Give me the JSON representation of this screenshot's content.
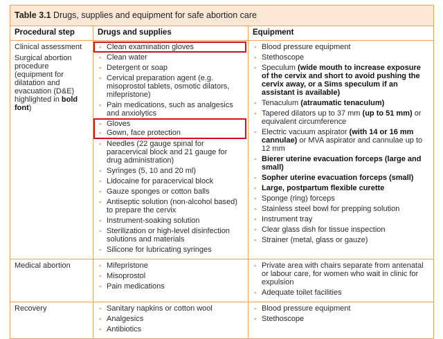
{
  "table": {
    "title_label": "Table 3.1",
    "title_text": " Drugs, supplies and equipment for safe abortion care",
    "headers": [
      "Procedural step",
      "Drugs and supplies",
      "Equipment"
    ],
    "bullet_color": "#f0a060",
    "highlight_color": "#d8101c",
    "rows": [
      {
        "step": [
          [
            {
              "t": "Clinical assessment"
            }
          ],
          [
            {
              "t": "Surgical abortion procedure (equipment for dilatation and evacuation (D&E) highlighted in "
            },
            {
              "t": "bold font",
              "b": true
            },
            {
              "t": ")"
            }
          ]
        ],
        "drugs": [
          [
            {
              "t": "Clean examination gloves"
            }
          ],
          [
            {
              "t": "Clean water"
            }
          ],
          [
            {
              "t": "Detergent or soap"
            }
          ],
          [
            {
              "t": "Cervical preparation agent (e.g. misoprostol tablets, osmotic dilators, mifepristone)"
            }
          ],
          [
            {
              "t": "Pain medications, such as analgesics and anxiolytics"
            }
          ],
          [
            {
              "t": "Gloves"
            }
          ],
          [
            {
              "t": "Gown, face protection"
            }
          ],
          [
            {
              "t": "Needles (22 gauge spinal for paracervical block and 21 gauge for drug administration)"
            }
          ],
          [
            {
              "t": "Syringes (5, 10 and 20 ml)"
            }
          ],
          [
            {
              "t": "Lidocaine for paracervical block"
            }
          ],
          [
            {
              "t": "Gauze sponges or cotton balls"
            }
          ],
          [
            {
              "t": "Antiseptic solution (non-alcohol based) to prepare the cervix"
            }
          ],
          [
            {
              "t": "Instrument-soaking solution"
            }
          ],
          [
            {
              "t": "Sterilization or high-level disinfection solutions and materials"
            }
          ],
          [
            {
              "t": "Silicone for lubricating syringes"
            }
          ]
        ],
        "equipment": [
          [
            {
              "t": "Blood pressure equipment"
            }
          ],
          [
            {
              "t": "Stethoscope"
            }
          ],
          [
            {
              "t": "Speculum "
            },
            {
              "t": "(wide mouth to increase exposure of the cervix and short to avoid pushing the cervix away, or a Sims speculum if an assistant is available)",
              "b": true
            }
          ],
          [
            {
              "t": "Tenaculum "
            },
            {
              "t": "(atraumatic tenaculum)",
              "b": true
            }
          ],
          [
            {
              "t": "Tapered dilators up to 37 mm "
            },
            {
              "t": "(up to 51 mm)",
              "b": true
            },
            {
              "t": " or equivalent circumference"
            }
          ],
          [
            {
              "t": "Electric vacuum aspirator "
            },
            {
              "t": "(with 14 or 16 mm cannulae)",
              "b": true
            },
            {
              "t": " or MVA aspirator and cannulae up to 12 mm"
            }
          ],
          [
            {
              "t": "Bierer uterine evacuation forceps (large and small)",
              "b": true
            }
          ],
          [
            {
              "t": "Sopher uterine evacuation forceps (small)",
              "b": true
            }
          ],
          [
            {
              "t": "Large, postpartum flexible curette",
              "b": true
            }
          ],
          [
            {
              "t": "Sponge (ring) forceps"
            }
          ],
          [
            {
              "t": "Stainless steel bowl for prepping solution"
            }
          ],
          [
            {
              "t": "Instrument tray"
            }
          ],
          [
            {
              "t": "Clear glass dish for tissue inspection"
            }
          ],
          [
            {
              "t": "Strainer (metal, glass or gauze)"
            }
          ]
        ]
      },
      {
        "step": [
          [
            {
              "t": "Medical abortion"
            }
          ]
        ],
        "drugs": [
          [
            {
              "t": "Mifepristone"
            }
          ],
          [
            {
              "t": "Misoprostol"
            }
          ],
          [
            {
              "t": "Pain medications"
            }
          ]
        ],
        "equipment": [
          [
            {
              "t": "Private area with chairs separate from antenatal or labour care, for women who wait in clinic for expulsion"
            }
          ],
          [
            {
              "t": "Adequate toilet facilities"
            }
          ]
        ]
      },
      {
        "step": [
          [
            {
              "t": "Recovery"
            }
          ]
        ],
        "drugs": [
          [
            {
              "t": "Sanitary napkins or cotton wool"
            }
          ],
          [
            {
              "t": "Analgesics"
            }
          ],
          [
            {
              "t": "Antibiotics"
            }
          ]
        ],
        "equipment": [
          [
            {
              "t": "Blood pressure equipment"
            }
          ],
          [
            {
              "t": "Stethoscope"
            }
          ]
        ]
      }
    ]
  }
}
